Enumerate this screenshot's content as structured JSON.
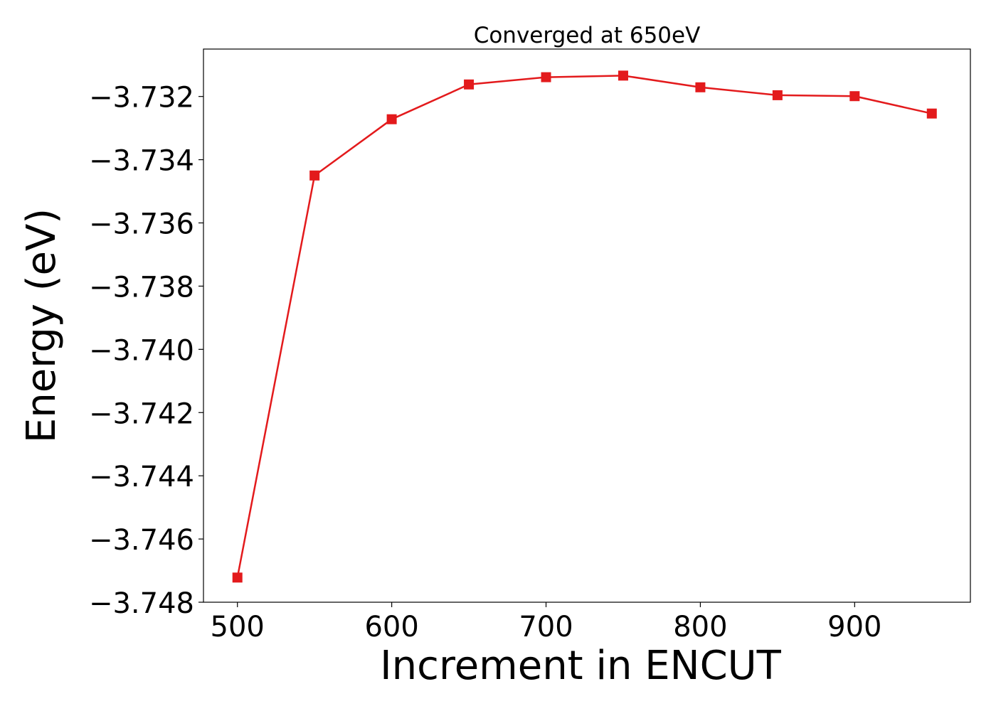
{
  "chart_data": {
    "type": "line",
    "title": "Converged at 650eV",
    "xlabel": "Increment in ENCUT",
    "ylabel": "Energy (eV)",
    "xlim": [
      478,
      975
    ],
    "ylim": [
      -3.748,
      -3.7305
    ],
    "x_ticks": [
      500,
      600,
      700,
      800,
      900
    ],
    "x_tick_labels": [
      "500",
      "600",
      "700",
      "800",
      "900"
    ],
    "y_ticks": [
      -3.748,
      -3.746,
      -3.744,
      -3.742,
      -3.74,
      -3.738,
      -3.736,
      -3.734,
      -3.732
    ],
    "y_tick_labels": [
      "−3.748",
      "−3.746",
      "−3.744",
      "−3.742",
      "−3.740",
      "−3.738",
      "−3.736",
      "−3.734",
      "−3.732"
    ],
    "grid": false,
    "legend": false,
    "series": [
      {
        "color": "#e31a1c",
        "marker": "square",
        "x": [
          500,
          550,
          600,
          650,
          700,
          750,
          800,
          850,
          900,
          950
        ],
        "y": [
          -3.74722,
          -3.7345,
          -3.73272,
          -3.73162,
          -3.73139,
          -3.73134,
          -3.73171,
          -3.73196,
          -3.73199,
          -3.73254
        ]
      }
    ]
  }
}
